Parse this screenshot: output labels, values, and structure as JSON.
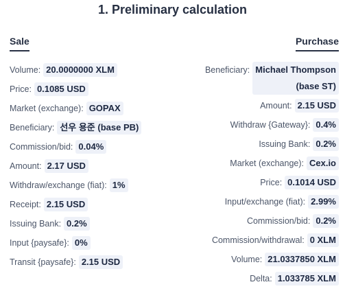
{
  "title": "1. Preliminary calculation",
  "sale": {
    "header": "Sale",
    "rows": [
      {
        "label": "Volume:",
        "value": "20.0000000 XLM"
      },
      {
        "label": "Price:",
        "value": "0.1085 USD"
      },
      {
        "label": "Market (exchange):",
        "value": "GOPAX"
      },
      {
        "label": "Beneficiary:",
        "value": "선우 용준 (base PB)"
      },
      {
        "label": "Commission/bid:",
        "value": "0.04%"
      },
      {
        "label": "Amount:",
        "value": "2.17 USD"
      },
      {
        "label": "Withdraw/exchange (fiat):",
        "value": "1%"
      },
      {
        "label": "Receipt:",
        "value": "2.15 USD"
      },
      {
        "label": "Issuing Bank:",
        "value": "0.2%"
      },
      {
        "label": "Input {paysafe}:",
        "value": "0%"
      },
      {
        "label": "Transit {paysafe}:",
        "value": "2.15 USD"
      }
    ]
  },
  "purchase": {
    "header": "Purchase",
    "beneficiary": {
      "label": "Beneficiary:",
      "value_line1": "Michael Thompson",
      "value_line2": "(base ST)"
    },
    "rows": [
      {
        "label": "Amount:",
        "value": "2.15 USD"
      },
      {
        "label": "Withdraw {Gateway}:",
        "value": "0.4%"
      },
      {
        "label": "Issuing Bank:",
        "value": "0.2%"
      },
      {
        "label": "Market (exchange):",
        "value": "Cex.io"
      },
      {
        "label": "Price:",
        "value": "0.1014 USD"
      },
      {
        "label": "Input/exchange (fiat):",
        "value": "2.99%"
      },
      {
        "label": "Commission/bid:",
        "value": "0.2%"
      },
      {
        "label": "Commission/withdrawal:",
        "value": "0 XLM"
      },
      {
        "label": "Volume:",
        "value": "21.0337850 XLM"
      },
      {
        "label": "Delta:",
        "value": "1.033785 XLM"
      }
    ]
  }
}
